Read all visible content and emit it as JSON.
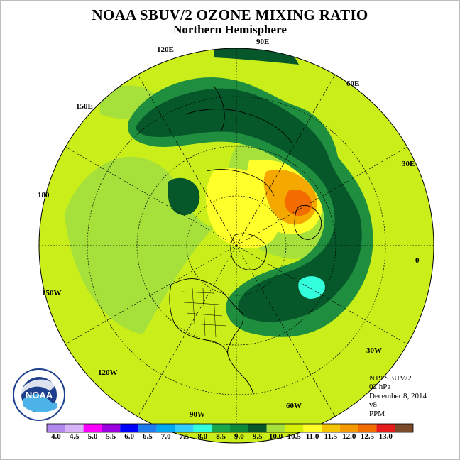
{
  "title": "NOAA SBUV/2 OZONE MIXING RATIO",
  "subtitle": "Northern Hemisphere",
  "longitude_labels": [
    "90E",
    "60E",
    "30E",
    "0",
    "30W",
    "60W",
    "90W",
    "120W",
    "150W",
    "180",
    "150E",
    "120E"
  ],
  "info": {
    "satellite": "N19 SBUV/2",
    "level": "02 hPa",
    "date": "December 8, 2014",
    "version": "v8",
    "units": "PPM"
  },
  "logo": {
    "text": "NOAA"
  },
  "colorbar": {
    "labels": [
      "4.0",
      "4.5",
      "5.0",
      "5.5",
      "6.0",
      "6.5",
      "7.0",
      "7.5",
      "8.0",
      "8.5",
      "9.0",
      "9.5",
      "10.0",
      "10.5",
      "11.0",
      "11.5",
      "12.0",
      "12.5",
      "13.0"
    ],
    "colors": [
      "#b388ee",
      "#d9b3f7",
      "#ff00ff",
      "#9a00e0",
      "#0000ff",
      "#1e7bf0",
      "#00a8f0",
      "#33ccff",
      "#33ffdd",
      "#1aa64a",
      "#0e8a3b",
      "#06582a",
      "#a6e03a",
      "#d6f00a",
      "#ffff2a",
      "#f5c400",
      "#f59b00",
      "#f26c00",
      "#e61b1b",
      "#7a4a2a"
    ]
  },
  "colors": {
    "field_base": "#c9ee1a",
    "band_lime": "#a6e03a",
    "band_mid": "#1f8f3f",
    "band_dark": "#06582a",
    "high_yellow": "#ffff2a",
    "high_orange": "#f5a800",
    "peak": "#f26c00",
    "cyan_low": "#33ffdd"
  }
}
